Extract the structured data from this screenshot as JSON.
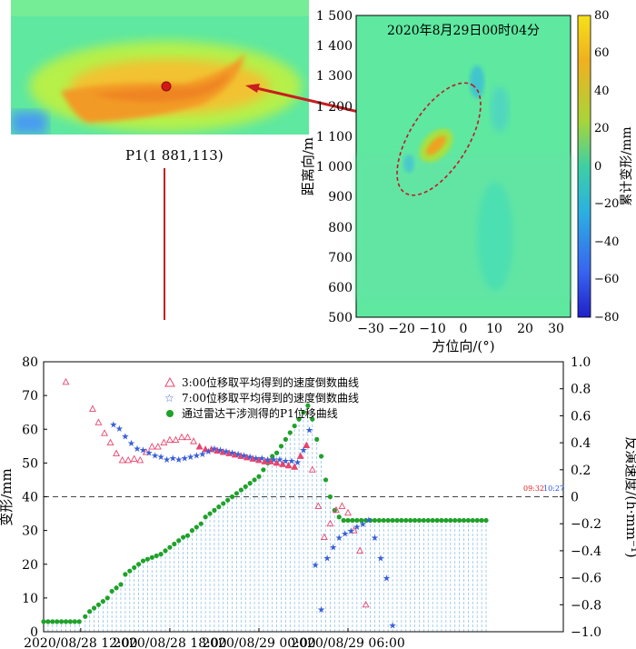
{
  "zoom_panel": {
    "label": "P1(1 881,113)"
  },
  "radar_map": {
    "title": "2020年8月29日00时04分",
    "xlabel": "方位向/(°)",
    "ylabel": "距离向/m",
    "x_ticks": [
      "−30",
      "−20",
      "−10",
      "0",
      "10",
      "20",
      "30"
    ],
    "y_ticks": [
      "1 500",
      "1 400",
      "1 300",
      "1 200",
      "1 100",
      "1 000",
      "900",
      "800",
      "700",
      "600",
      "500"
    ],
    "colorbar_label": "累计变形/mm",
    "colorbar_ticks": [
      "80",
      "60",
      "40",
      "20",
      "0",
      "−20",
      "−40",
      "−60",
      "−80"
    ],
    "colors": {
      "background": "#5ee8a0",
      "ellipse": "#c0182a",
      "arrow": "#c81e1e"
    }
  },
  "chart_data": {
    "type": "scatter",
    "title": "",
    "xlabel": "",
    "ylabel": "变形/mm",
    "y2label": "反演速度/(h·mm⁻¹)",
    "x_range_hours": [
      -2.5,
      32.5
    ],
    "x_ticks": [
      {
        "hour": 0,
        "label": "2020/08/28 12:00"
      },
      {
        "hour": 6,
        "label": "2020/08/28 18:00"
      },
      {
        "hour": 12,
        "label": "2020/08/29 00:00"
      },
      {
        "hour": 18,
        "label": "2020/08/29 06:00"
      }
    ],
    "ylim": [
      0,
      80
    ],
    "y_ticks": [
      "0",
      "10",
      "20",
      "30",
      "40",
      "50",
      "60",
      "70",
      "80"
    ],
    "y2lim": [
      -1.0,
      1.0
    ],
    "y2_ticks": [
      "−1.0",
      "−0.8",
      "−0.6",
      "−0.4",
      "−0.2",
      "0",
      "0.2",
      "0.4",
      "0.6",
      "0.8",
      "1.0"
    ],
    "annotations": [
      {
        "text": "09:32",
        "color": "#e02020"
      },
      {
        "text": "10:27",
        "color": "#2050e0"
      }
    ],
    "legend": [
      {
        "name": "3:00位移取平均得到的速度倒数曲线",
        "marker": "triangle",
        "color": "#e8456e"
      },
      {
        "name": "7:00位移取平均得到的速度倒数曲线",
        "marker": "star",
        "color": "#3a5fd8"
      },
      {
        "name": "通过雷达干涉测得的P1位移曲线",
        "marker": "circle",
        "color": "#1fa12a"
      }
    ],
    "series": [
      {
        "name": "通过雷达干涉测得的P1位移曲线",
        "axis": "left",
        "x": [
          -2.5,
          -2.2,
          -1.9,
          -1.6,
          -1.3,
          -1.0,
          -0.7,
          -0.4,
          -0.1,
          0.3,
          0.6,
          0.9,
          1.2,
          1.5,
          1.8,
          2.1,
          2.4,
          2.7,
          3.0,
          3.3,
          3.6,
          3.9,
          4.2,
          4.5,
          4.8,
          5.1,
          5.4,
          5.7,
          6.0,
          6.3,
          6.6,
          6.9,
          7.2,
          7.5,
          7.8,
          8.1,
          8.4,
          8.7,
          9.0,
          9.3,
          9.6,
          9.9,
          10.2,
          10.5,
          10.8,
          11.1,
          11.4,
          11.7,
          12.0,
          12.3,
          12.6,
          12.9,
          13.2,
          13.5,
          13.8,
          14.1,
          14.4,
          14.7,
          15.0,
          15.3,
          15.6,
          15.9,
          16.2,
          16.5,
          16.8,
          17.1,
          17.4,
          17.7,
          18.0,
          18.3,
          18.6,
          18.9,
          19.2,
          19.5,
          19.8,
          20.1,
          20.4,
          20.7,
          21.0,
          21.3,
          21.6,
          21.9,
          22.2,
          22.5,
          22.8,
          23.1,
          23.4,
          23.7,
          24.0,
          24.3,
          24.6,
          24.9,
          25.2,
          25.5,
          25.8,
          26.1,
          26.4,
          26.7,
          27.0,
          27.3
        ],
        "values": [
          3,
          3,
          3,
          3,
          3,
          3,
          3,
          3,
          3,
          4.5,
          6,
          7,
          8,
          9,
          10,
          12,
          13,
          14,
          17,
          18,
          19,
          20,
          21,
          21.5,
          22,
          22.5,
          23,
          24,
          25,
          26,
          27,
          28,
          28.5,
          30,
          31,
          32,
          34,
          35,
          36,
          37,
          38,
          39,
          40,
          41,
          42,
          43,
          44,
          45,
          46,
          48,
          50,
          52,
          53,
          55,
          57,
          59,
          61,
          63,
          65,
          67,
          63,
          57,
          52,
          45,
          40,
          36,
          34,
          33,
          33,
          33,
          33,
          33,
          33,
          33,
          33,
          33,
          33,
          33,
          33,
          33,
          33,
          33,
          33,
          33,
          33,
          33,
          33,
          33,
          33,
          33,
          33,
          33,
          33,
          33,
          33,
          33,
          33,
          33,
          33,
          33
        ]
      },
      {
        "name": "3:00位移取平均得到的速度倒数曲线",
        "axis": "right",
        "x": [
          -1.0,
          0.8,
          1.2,
          1.6,
          2.0,
          2.4,
          2.8,
          3.2,
          3.6,
          4.0,
          4.4,
          4.8,
          5.2,
          5.6,
          6.0,
          6.4,
          6.8,
          7.2,
          7.6,
          8.0,
          8.4,
          8.8,
          9.2,
          9.6,
          10.0,
          10.4,
          10.8,
          11.2,
          11.6,
          12.0,
          12.4,
          12.8,
          13.2,
          13.6,
          14.0,
          14.4,
          14.8,
          15.2,
          15.6,
          16.0,
          16.4,
          16.8,
          17.2,
          17.6,
          18.0,
          18.4,
          18.8,
          19.2
        ],
        "values": [
          0.85,
          0.65,
          0.55,
          0.47,
          0.4,
          0.32,
          0.27,
          0.27,
          0.28,
          0.27,
          0.33,
          0.37,
          0.37,
          0.4,
          0.42,
          0.42,
          0.44,
          0.44,
          0.41,
          0.37,
          0.35,
          0.35,
          0.34,
          0.33,
          0.32,
          0.31,
          0.3,
          0.29,
          0.28,
          0.27,
          0.26,
          0.26,
          0.25,
          0.24,
          0.23,
          0.22,
          0.3,
          0.38,
          0.2,
          -0.07,
          -0.3,
          -0.2,
          -0.1,
          -0.07,
          -0.12,
          -0.25,
          -0.4,
          -0.8
        ]
      },
      {
        "name": "7:00位移取平均得到的速度倒数曲线",
        "axis": "right",
        "x": [
          2.2,
          2.6,
          3.0,
          3.4,
          3.8,
          4.2,
          4.6,
          5.0,
          5.4,
          5.8,
          6.2,
          6.6,
          7.0,
          7.4,
          7.8,
          8.2,
          8.6,
          9.0,
          9.4,
          9.8,
          10.2,
          10.6,
          11.0,
          11.4,
          11.8,
          12.2,
          12.6,
          13.0,
          13.4,
          13.8,
          14.2,
          14.6,
          15.0,
          15.4,
          15.8,
          16.2,
          16.6,
          17.0,
          17.4,
          17.8,
          18.2,
          18.6,
          19.0,
          19.4,
          19.8,
          20.2,
          20.6,
          21.0
        ],
        "values": [
          0.54,
          0.51,
          0.45,
          0.4,
          0.36,
          0.35,
          0.33,
          0.31,
          0.3,
          0.28,
          0.29,
          0.28,
          0.29,
          0.3,
          0.31,
          0.32,
          0.34,
          0.36,
          0.35,
          0.34,
          0.33,
          0.32,
          0.31,
          0.3,
          0.29,
          0.29,
          0.28,
          0.28,
          0.28,
          0.27,
          0.27,
          0.26,
          0.35,
          0.5,
          -0.5,
          -0.83,
          -0.45,
          -0.37,
          -0.3,
          -0.27,
          -0.25,
          -0.22,
          -0.2,
          -0.17,
          -0.3,
          -0.45,
          -0.6,
          -0.95
        ]
      }
    ]
  }
}
